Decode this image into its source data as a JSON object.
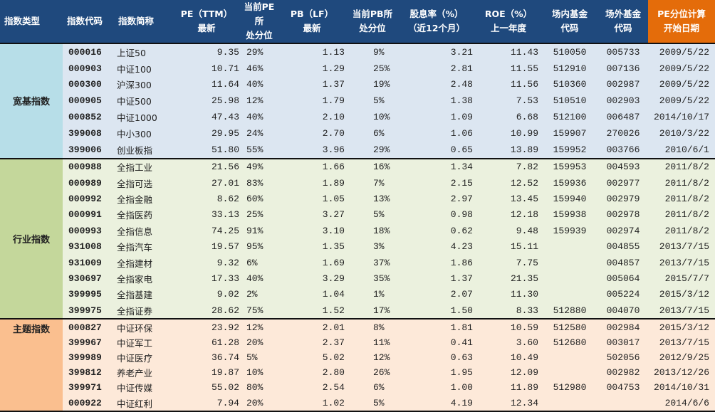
{
  "colors": {
    "header": "#1f497d",
    "header_highlight": "#e46c0a",
    "broad": "#dce6f1",
    "industry": "#ebf1de",
    "theme": "#fde9d9"
  },
  "headers": [
    [
      "指数类型"
    ],
    [
      "指数代码"
    ],
    [
      "指数简称"
    ],
    [
      "PE（TTM）",
      "最新"
    ],
    [
      "当前PE所",
      "处分位"
    ],
    [
      "PB（LF）",
      "最新"
    ],
    [
      "当前PB所",
      "处分位"
    ],
    [
      "股息率（%）",
      "（近12个月）"
    ],
    [
      "ROE（%）",
      "上一年度"
    ],
    [
      "场内基金",
      "代码"
    ],
    [
      "场外基金",
      "代码"
    ],
    [
      "PE分位计算",
      "开始日期"
    ]
  ],
  "sections": [
    {
      "type": "宽基指数",
      "rows": [
        [
          "000016",
          "上证50",
          "9.35",
          "29%",
          "1.13",
          "9%",
          "3.21",
          "11.43",
          "510050",
          "005733",
          "2009/5/22"
        ],
        [
          "000903",
          "中证100",
          "10.71",
          "46%",
          "1.29",
          "25%",
          "2.81",
          "11.55",
          "512910",
          "007136",
          "2009/5/22"
        ],
        [
          "000300",
          "沪深300",
          "11.64",
          "40%",
          "1.37",
          "19%",
          "2.48",
          "11.56",
          "510360",
          "002987",
          "2009/5/22"
        ],
        [
          "000905",
          "中证500",
          "25.98",
          "12%",
          "1.79",
          "5%",
          "1.38",
          "7.53",
          "510510",
          "002903",
          "2009/5/22"
        ],
        [
          "000852",
          "中证1000",
          "47.43",
          "40%",
          "2.10",
          "10%",
          "1.09",
          "6.68",
          "512100",
          "006487",
          "2014/10/17"
        ],
        [
          "399008",
          "中小300",
          "29.95",
          "24%",
          "2.70",
          "6%",
          "1.06",
          "10.99",
          "159907",
          "270026",
          "2010/3/22"
        ],
        [
          "399006",
          "创业板指",
          "51.80",
          "55%",
          "3.96",
          "29%",
          "0.65",
          "13.89",
          "159952",
          "003766",
          "2010/6/1"
        ]
      ]
    },
    {
      "type": "行业指数",
      "rows": [
        [
          "000988",
          "全指工业",
          "21.56",
          "49%",
          "1.66",
          "16%",
          "1.34",
          "7.82",
          "159953",
          "004593",
          "2011/8/2"
        ],
        [
          "000989",
          "全指可选",
          "27.01",
          "83%",
          "1.89",
          "7%",
          "2.15",
          "12.52",
          "159936",
          "002977",
          "2011/8/2"
        ],
        [
          "000992",
          "全指金融",
          "8.62",
          "60%",
          "1.05",
          "13%",
          "2.97",
          "13.45",
          "159940",
          "002979",
          "2011/8/2"
        ],
        [
          "000991",
          "全指医药",
          "33.13",
          "25%",
          "3.27",
          "5%",
          "0.98",
          "12.18",
          "159938",
          "002978",
          "2011/8/2"
        ],
        [
          "000993",
          "全指信息",
          "74.25",
          "91%",
          "3.10",
          "18%",
          "0.62",
          "9.48",
          "159939",
          "002974",
          "2011/8/2"
        ],
        [
          "931008",
          "全指汽车",
          "19.57",
          "95%",
          "1.35",
          "3%",
          "4.23",
          "15.11",
          "",
          "004855",
          "2013/7/15"
        ],
        [
          "931009",
          "全指建材",
          "9.32",
          "6%",
          "1.69",
          "37%",
          "1.86",
          "7.75",
          "",
          "004857",
          "2013/7/15"
        ],
        [
          "930697",
          "全指家电",
          "17.33",
          "40%",
          "3.29",
          "35%",
          "1.37",
          "21.35",
          "",
          "005064",
          "2015/7/7"
        ],
        [
          "399995",
          "全指基建",
          "9.02",
          "2%",
          "1.04",
          "1%",
          "2.07",
          "11.30",
          "",
          "005224",
          "2015/3/12"
        ],
        [
          "399975",
          "全指证券",
          "28.62",
          "75%",
          "1.52",
          "17%",
          "1.50",
          "8.33",
          "512880",
          "004070",
          "2013/7/15"
        ]
      ]
    },
    {
      "type": "主题指数",
      "rows": [
        [
          "000827",
          "中证环保",
          "23.92",
          "12%",
          "2.01",
          "8%",
          "1.81",
          "10.59",
          "512580",
          "002984",
          "2015/3/12"
        ],
        [
          "399967",
          "中证军工",
          "61.28",
          "20%",
          "2.37",
          "11%",
          "0.41",
          "3.60",
          "512680",
          "003017",
          "2013/7/15"
        ],
        [
          "399989",
          "中证医疗",
          "36.74",
          "5%",
          "5.02",
          "12%",
          "0.63",
          "10.49",
          "",
          "502056",
          "2012/9/25"
        ],
        [
          "399812",
          "养老产业",
          "19.87",
          "10%",
          "2.80",
          "26%",
          "1.95",
          "12.09",
          "",
          "002982",
          "2013/12/26"
        ],
        [
          "399971",
          "中证传媒",
          "55.02",
          "80%",
          "2.54",
          "6%",
          "1.00",
          "11.89",
          "512980",
          "004753",
          "2014/10/31"
        ],
        [
          "000922",
          "中证红利",
          "7.94",
          "20%",
          "1.02",
          "5%",
          "4.19",
          "12.34",
          "",
          "",
          "2014/6/6"
        ]
      ]
    }
  ]
}
